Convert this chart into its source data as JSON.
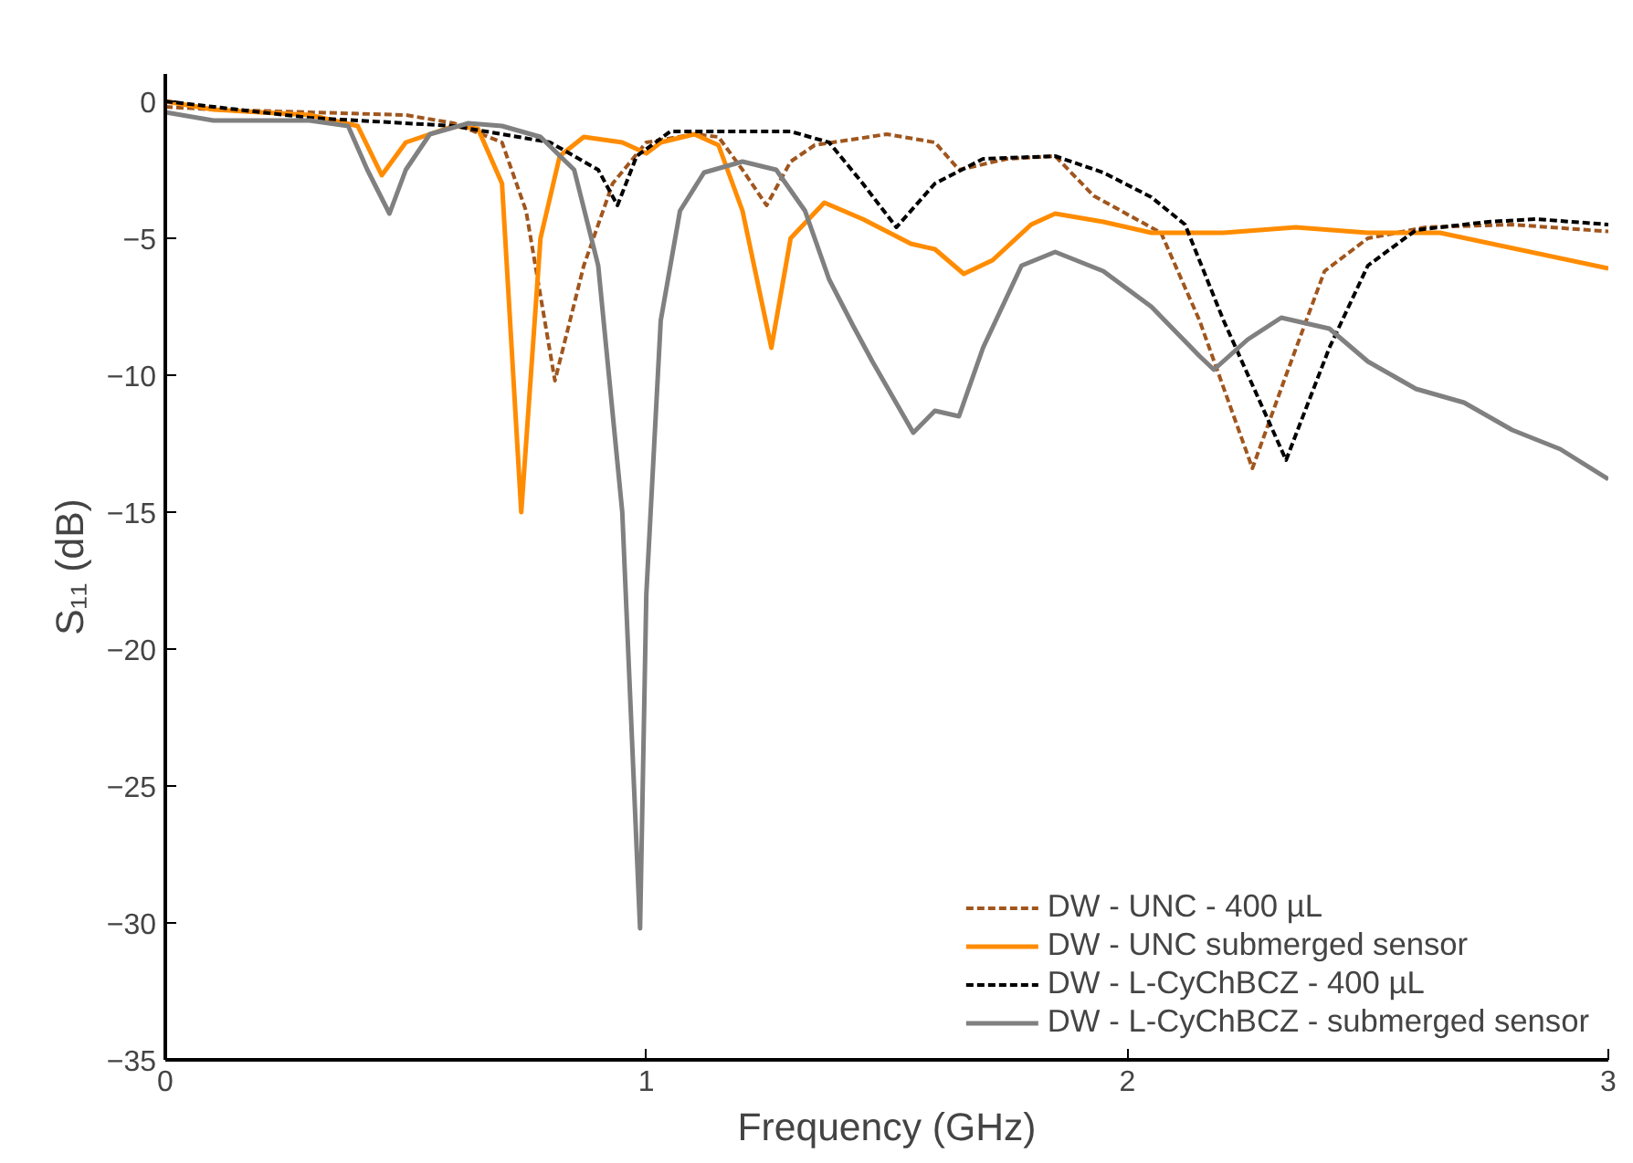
{
  "chart_data": {
    "type": "line",
    "xlabel": "Frequency (GHz)",
    "ylabel": "S₁₁ (dB)",
    "xlim": [
      0,
      3
    ],
    "ylim": [
      -35,
      1
    ],
    "xticks": [
      0,
      1,
      2,
      3
    ],
    "yticks": [
      -35,
      -30,
      -25,
      -20,
      -15,
      -10,
      -5,
      0
    ],
    "grid": false,
    "legend": "bottom right",
    "marker": "none",
    "series": [
      {
        "name": "DW - UNC - 400 µL",
        "color": "#a0561e",
        "line_style": "dashed",
        "x": [
          0,
          0.1,
          0.3,
          0.5,
          0.6,
          0.7,
          0.75,
          0.81,
          0.87,
          0.93,
          1.0,
          1.1,
          1.15,
          1.2,
          1.25,
          1.3,
          1.35,
          1.5,
          1.6,
          1.65,
          1.75,
          1.85,
          1.93,
          2.07,
          2.15,
          2.26,
          2.33,
          2.41,
          2.5,
          2.62,
          2.8,
          3.0
        ],
        "values": [
          -0.2,
          -0.3,
          -0.4,
          -0.5,
          -0.8,
          -1.5,
          -4,
          -10.2,
          -6,
          -3,
          -1.5,
          -1.2,
          -1.3,
          -2.5,
          -3.8,
          -2.2,
          -1.6,
          -1.2,
          -1.5,
          -2.5,
          -2.1,
          -2.0,
          -3.45,
          -4.8,
          -8,
          -13.4,
          -10,
          -6.2,
          -5.0,
          -4.6,
          -4.5,
          -4.75
        ]
      },
      {
        "name": "DW - UNC submerged sensor",
        "color": "#ff8c00",
        "line_style": "solid",
        "x": [
          0,
          0.1,
          0.3,
          0.4,
          0.45,
          0.5,
          0.6,
          0.65,
          0.7,
          0.74,
          0.78,
          0.82,
          0.87,
          0.95,
          1.0,
          1.03,
          1.1,
          1.15,
          1.2,
          1.26,
          1.3,
          1.37,
          1.45,
          1.55,
          1.6,
          1.66,
          1.72,
          1.8,
          1.85,
          1.95,
          2.05,
          2.2,
          2.35,
          2.5,
          2.65,
          3.0
        ],
        "values": [
          0,
          -0.3,
          -0.5,
          -0.9,
          -2.7,
          -1.5,
          -0.9,
          -1.0,
          -3,
          -15,
          -5,
          -2,
          -1.3,
          -1.5,
          -1.9,
          -1.5,
          -1.2,
          -1.6,
          -4,
          -9.0,
          -5,
          -3.7,
          -4.3,
          -5.2,
          -5.4,
          -6.3,
          -5.8,
          -4.5,
          -4.1,
          -4.4,
          -4.8,
          -4.8,
          -4.6,
          -4.8,
          -4.8,
          -6.1
        ]
      },
      {
        "name": "DW - L-CyChBCZ - 400 µL",
        "color": "#000000",
        "line_style": "dashed",
        "x": [
          0,
          0.3,
          0.6,
          0.8,
          0.9,
          0.94,
          0.98,
          1.05,
          1.3,
          1.38,
          1.45,
          1.52,
          1.6,
          1.7,
          1.85,
          1.95,
          2.05,
          2.12,
          2.2,
          2.33,
          2.42,
          2.5,
          2.6,
          2.75,
          2.85,
          3.0
        ],
        "values": [
          0,
          -0.6,
          -0.9,
          -1.5,
          -2.5,
          -3.8,
          -2,
          -1.1,
          -1.1,
          -1.5,
          -3,
          -4.6,
          -3,
          -2.1,
          -2.0,
          -2.6,
          -3.5,
          -4.5,
          -8,
          -13.1,
          -9,
          -6,
          -4.7,
          -4.4,
          -4.3,
          -4.5
        ]
      },
      {
        "name": "DW - L-CyChBCZ - submerged sensor",
        "color": "#808080",
        "line_style": "solid",
        "x": [
          0,
          0.1,
          0.3,
          0.38,
          0.42,
          0.466,
          0.5,
          0.55,
          0.63,
          0.7,
          0.78,
          0.85,
          0.9,
          0.95,
          0.987,
          1.0,
          1.03,
          1.07,
          1.12,
          1.2,
          1.27,
          1.33,
          1.38,
          1.43,
          1.47,
          1.555,
          1.6,
          1.65,
          1.7,
          1.78,
          1.85,
          1.95,
          2.05,
          2.15,
          2.18,
          2.25,
          2.32,
          2.42,
          2.5,
          2.6,
          2.7,
          2.8,
          2.9,
          3.0
        ],
        "values": [
          -0.4,
          -0.7,
          -0.7,
          -0.9,
          -2.5,
          -4.1,
          -2.5,
          -1.2,
          -0.8,
          -0.9,
          -1.3,
          -2.5,
          -6,
          -15,
          -30.2,
          -18,
          -8,
          -4,
          -2.6,
          -2.2,
          -2.5,
          -4,
          -6.5,
          -8.2,
          -9.5,
          -12.1,
          -11.3,
          -11.5,
          -9,
          -6,
          -5.5,
          -6.2,
          -7.5,
          -9.3,
          -9.8,
          -8.7,
          -7.9,
          -8.3,
          -9.5,
          -10.5,
          -11,
          -12,
          -12.7,
          -13.8
        ]
      }
    ]
  }
}
